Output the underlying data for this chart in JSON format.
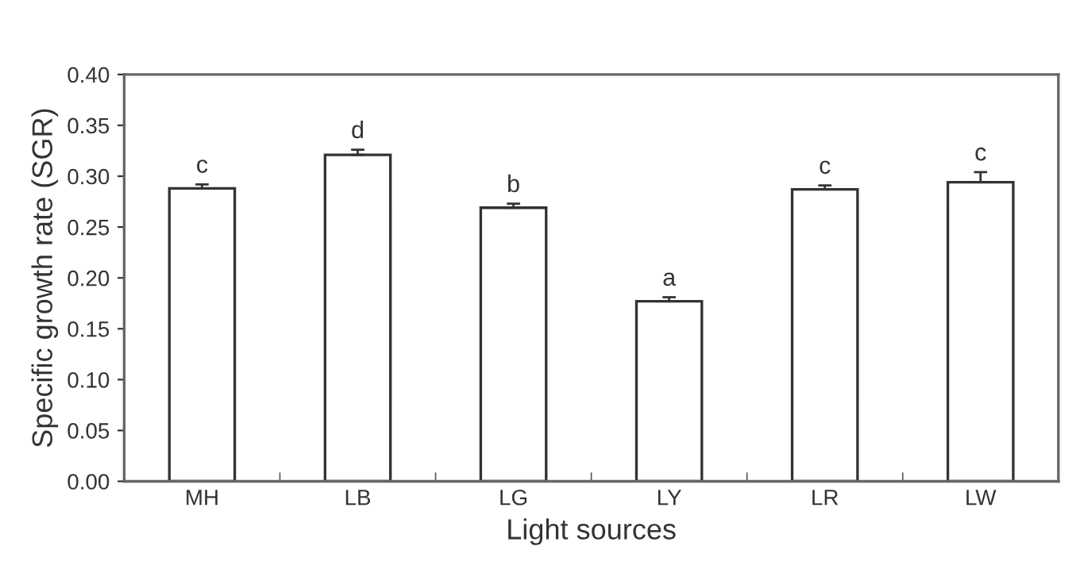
{
  "chart_data": {
    "type": "bar",
    "xlabel": "Light sources",
    "ylabel": "Specific growth rate (SGR)",
    "categories": [
      "MH",
      "LB",
      "LG",
      "LY",
      "LR",
      "LW"
    ],
    "series": [
      {
        "color": "#ffffff",
        "values": [
          0.288,
          0.321,
          0.269,
          0.177,
          0.287,
          0.294
        ],
        "errors": [
          [
            0.288,
            0.292
          ],
          [
            0.321,
            0.326
          ],
          [
            0.269,
            0.273
          ],
          [
            0.177,
            0.181
          ],
          [
            0.287,
            0.291
          ],
          [
            0.294,
            0.304
          ]
        ]
      }
    ],
    "ylim": [
      0,
      0.4
    ],
    "yticks": [
      {
        "value": 0,
        "label": "0.00"
      },
      {
        "value": 0.05,
        "label": "0.05"
      },
      {
        "value": 0.1,
        "label": "0.10"
      },
      {
        "value": 0.15,
        "label": "0.15"
      },
      {
        "value": 0.2,
        "label": "0.20"
      },
      {
        "value": 0.25,
        "label": "0.25"
      },
      {
        "value": 0.3,
        "label": "0.30"
      },
      {
        "value": 0.35,
        "label": "0.35"
      },
      {
        "value": 0.4,
        "label": "0.40"
      }
    ],
    "annotations": [
      {
        "text": "c",
        "x": "MH",
        "y": 0.292
      },
      {
        "text": "d",
        "x": "LB",
        "y": 0.326
      },
      {
        "text": "b",
        "x": "LG",
        "y": 0.273
      },
      {
        "text": "a",
        "x": "LY",
        "y": 0.181
      },
      {
        "text": "c",
        "x": "LR",
        "y": 0.291
      },
      {
        "text": "c",
        "x": "LW",
        "y": 0.304
      }
    ],
    "grid": false,
    "legend": false
  }
}
